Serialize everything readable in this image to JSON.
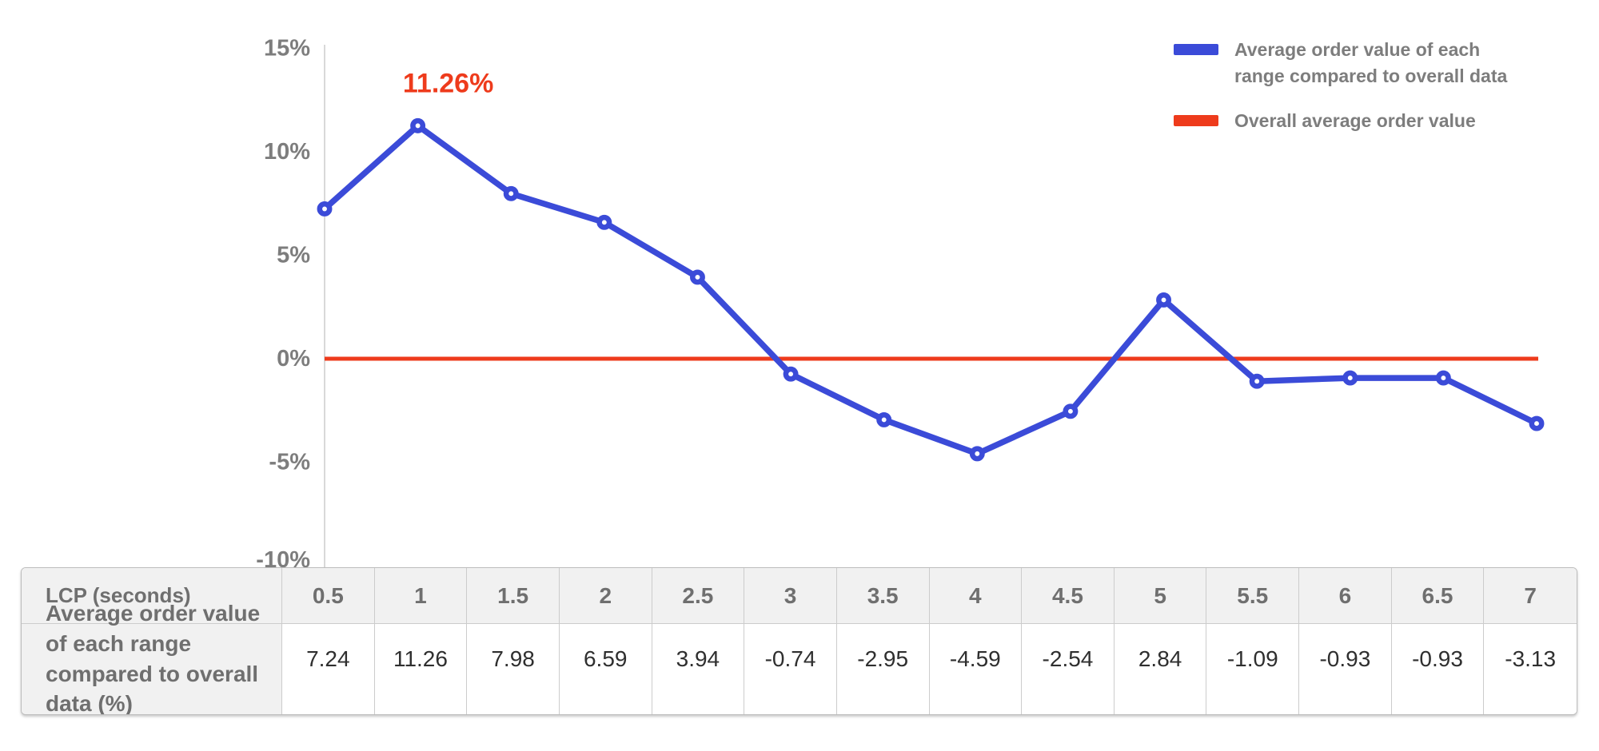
{
  "chart_data": {
    "type": "line",
    "title": "",
    "xlabel": "LCP (seconds)",
    "ylabel": "",
    "x": [
      0.5,
      1,
      1.5,
      2,
      2.5,
      3,
      3.5,
      4,
      4.5,
      5,
      5.5,
      6,
      6.5,
      7
    ],
    "series": [
      {
        "name": "Average order value of each range compared to overall data",
        "values": [
          7.24,
          11.26,
          7.98,
          6.59,
          3.94,
          -0.74,
          -2.95,
          -4.59,
          -2.54,
          2.84,
          -1.09,
          -0.93,
          -0.93,
          -3.13
        ],
        "color": "#3b4bd8",
        "marker": "open-circle"
      },
      {
        "name": "Overall average order value",
        "values": [
          0,
          0,
          0,
          0,
          0,
          0,
          0,
          0,
          0,
          0,
          0,
          0,
          0,
          0
        ],
        "color": "#ee3b1c",
        "marker": "none"
      }
    ],
    "annotation": {
      "text": "11.26%",
      "at_x": 1,
      "at_y": 11.26,
      "color": "#ee3b1c"
    },
    "ytick_labels": [
      "15%",
      "10%",
      "5%",
      "0%",
      "-5%",
      "-10%"
    ],
    "ytick_values": [
      15,
      10,
      5,
      0,
      -5,
      -10
    ],
    "ylim": [
      -10,
      15
    ],
    "grid": "single vertical y-axis line only",
    "legend_position": "top-right"
  },
  "legend": {
    "items": [
      {
        "line1": "Average order value of each",
        "line2": "range compared to overall data",
        "color": "#3b4bd8"
      },
      {
        "line1": "Overall average order value",
        "line2": "",
        "color": "#ee3b1c"
      }
    ]
  },
  "table": {
    "header_row": {
      "label": "LCP (seconds)",
      "values": [
        "0.5",
        "1",
        "1.5",
        "2",
        "2.5",
        "3",
        "3.5",
        "4",
        "4.5",
        "5",
        "5.5",
        "6",
        "6.5",
        "7"
      ]
    },
    "data_row": {
      "label": "Average order value of each range compared to overall data (%)",
      "values": [
        "7.24",
        "11.26",
        "7.98",
        "6.59",
        "3.94",
        "-0.74",
        "-2.95",
        "-4.59",
        "-2.54",
        "2.84",
        "-1.09",
        "-0.93",
        "-0.93",
        "-3.13"
      ]
    }
  },
  "colors": {
    "series_blue": "#3b4bd8",
    "baseline_red": "#ee3b1c",
    "axis_gray": "#d9d9d9",
    "label_gray": "#7d7d7d",
    "table_header_bg": "#f1f1f1",
    "table_border": "#cccccc",
    "table_value_text": "#2f2f2f"
  }
}
